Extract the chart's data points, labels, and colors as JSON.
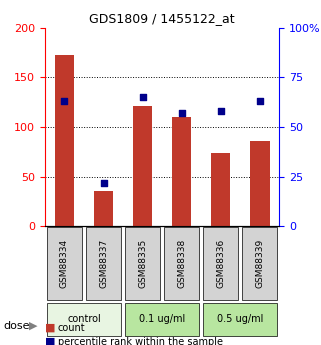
{
  "title": "GDS1809 / 1455122_at",
  "samples": [
    "GSM88334",
    "GSM88337",
    "GSM88335",
    "GSM88338",
    "GSM88336",
    "GSM88339"
  ],
  "counts": [
    172,
    36,
    121,
    110,
    74,
    86
  ],
  "percentiles": [
    63,
    22,
    65,
    57,
    58,
    63
  ],
  "groups": [
    {
      "label": "control",
      "indices": [
        0,
        1
      ],
      "color": "#d9f0d0"
    },
    {
      "label": "0.1 ug/ml",
      "indices": [
        2,
        3
      ],
      "color": "#90ee90"
    },
    {
      "label": "0.5 ug/ml",
      "indices": [
        4,
        5
      ],
      "color": "#90ee90"
    }
  ],
  "bar_color": "#c0392b",
  "dot_color": "#00008b",
  "left_ylim": [
    0,
    200
  ],
  "right_ylim": [
    0,
    100
  ],
  "left_yticks": [
    0,
    50,
    100,
    150,
    200
  ],
  "right_yticks": [
    0,
    25,
    50,
    75,
    100
  ],
  "right_yticklabels": [
    "0",
    "25",
    "50",
    "75",
    "100%"
  ],
  "grid_values": [
    50,
    100,
    150
  ],
  "dose_label": "dose",
  "legend_count": "count",
  "legend_percentile": "percentile rank within the sample",
  "sample_box_color": "#d3d3d3",
  "control_bg": "#e8f5e2",
  "group1_bg": "#b8e6a0",
  "group2_bg": "#b8e6a0"
}
